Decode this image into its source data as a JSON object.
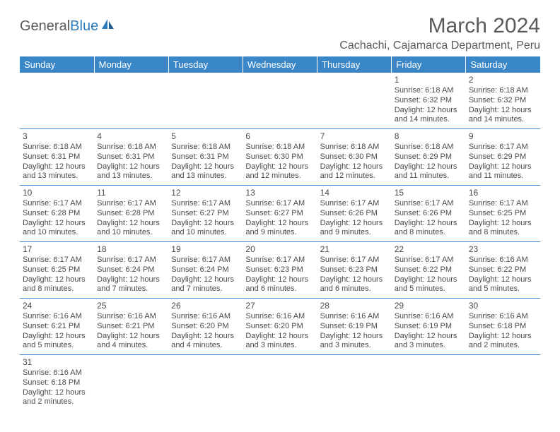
{
  "brand": {
    "part1": "General",
    "part2": "Blue"
  },
  "title": "March 2024",
  "location": "Cachachi, Cajamarca Department, Peru",
  "colors": {
    "header_bg": "#3a87c8",
    "header_fg": "#ffffff",
    "text": "#4a4a4a",
    "rule": "#3a87c8"
  },
  "day_headers": [
    "Sunday",
    "Monday",
    "Tuesday",
    "Wednesday",
    "Thursday",
    "Friday",
    "Saturday"
  ],
  "weeks": [
    [
      null,
      null,
      null,
      null,
      null,
      {
        "n": "1",
        "sr": "Sunrise: 6:18 AM",
        "ss": "Sunset: 6:32 PM",
        "dl": "Daylight: 12 hours and 14 minutes."
      },
      {
        "n": "2",
        "sr": "Sunrise: 6:18 AM",
        "ss": "Sunset: 6:32 PM",
        "dl": "Daylight: 12 hours and 14 minutes."
      }
    ],
    [
      {
        "n": "3",
        "sr": "Sunrise: 6:18 AM",
        "ss": "Sunset: 6:31 PM",
        "dl": "Daylight: 12 hours and 13 minutes."
      },
      {
        "n": "4",
        "sr": "Sunrise: 6:18 AM",
        "ss": "Sunset: 6:31 PM",
        "dl": "Daylight: 12 hours and 13 minutes."
      },
      {
        "n": "5",
        "sr": "Sunrise: 6:18 AM",
        "ss": "Sunset: 6:31 PM",
        "dl": "Daylight: 12 hours and 13 minutes."
      },
      {
        "n": "6",
        "sr": "Sunrise: 6:18 AM",
        "ss": "Sunset: 6:30 PM",
        "dl": "Daylight: 12 hours and 12 minutes."
      },
      {
        "n": "7",
        "sr": "Sunrise: 6:18 AM",
        "ss": "Sunset: 6:30 PM",
        "dl": "Daylight: 12 hours and 12 minutes."
      },
      {
        "n": "8",
        "sr": "Sunrise: 6:18 AM",
        "ss": "Sunset: 6:29 PM",
        "dl": "Daylight: 12 hours and 11 minutes."
      },
      {
        "n": "9",
        "sr": "Sunrise: 6:17 AM",
        "ss": "Sunset: 6:29 PM",
        "dl": "Daylight: 12 hours and 11 minutes."
      }
    ],
    [
      {
        "n": "10",
        "sr": "Sunrise: 6:17 AM",
        "ss": "Sunset: 6:28 PM",
        "dl": "Daylight: 12 hours and 10 minutes."
      },
      {
        "n": "11",
        "sr": "Sunrise: 6:17 AM",
        "ss": "Sunset: 6:28 PM",
        "dl": "Daylight: 12 hours and 10 minutes."
      },
      {
        "n": "12",
        "sr": "Sunrise: 6:17 AM",
        "ss": "Sunset: 6:27 PM",
        "dl": "Daylight: 12 hours and 10 minutes."
      },
      {
        "n": "13",
        "sr": "Sunrise: 6:17 AM",
        "ss": "Sunset: 6:27 PM",
        "dl": "Daylight: 12 hours and 9 minutes."
      },
      {
        "n": "14",
        "sr": "Sunrise: 6:17 AM",
        "ss": "Sunset: 6:26 PM",
        "dl": "Daylight: 12 hours and 9 minutes."
      },
      {
        "n": "15",
        "sr": "Sunrise: 6:17 AM",
        "ss": "Sunset: 6:26 PM",
        "dl": "Daylight: 12 hours and 8 minutes."
      },
      {
        "n": "16",
        "sr": "Sunrise: 6:17 AM",
        "ss": "Sunset: 6:25 PM",
        "dl": "Daylight: 12 hours and 8 minutes."
      }
    ],
    [
      {
        "n": "17",
        "sr": "Sunrise: 6:17 AM",
        "ss": "Sunset: 6:25 PM",
        "dl": "Daylight: 12 hours and 8 minutes."
      },
      {
        "n": "18",
        "sr": "Sunrise: 6:17 AM",
        "ss": "Sunset: 6:24 PM",
        "dl": "Daylight: 12 hours and 7 minutes."
      },
      {
        "n": "19",
        "sr": "Sunrise: 6:17 AM",
        "ss": "Sunset: 6:24 PM",
        "dl": "Daylight: 12 hours and 7 minutes."
      },
      {
        "n": "20",
        "sr": "Sunrise: 6:17 AM",
        "ss": "Sunset: 6:23 PM",
        "dl": "Daylight: 12 hours and 6 minutes."
      },
      {
        "n": "21",
        "sr": "Sunrise: 6:17 AM",
        "ss": "Sunset: 6:23 PM",
        "dl": "Daylight: 12 hours and 6 minutes."
      },
      {
        "n": "22",
        "sr": "Sunrise: 6:17 AM",
        "ss": "Sunset: 6:22 PM",
        "dl": "Daylight: 12 hours and 5 minutes."
      },
      {
        "n": "23",
        "sr": "Sunrise: 6:16 AM",
        "ss": "Sunset: 6:22 PM",
        "dl": "Daylight: 12 hours and 5 minutes."
      }
    ],
    [
      {
        "n": "24",
        "sr": "Sunrise: 6:16 AM",
        "ss": "Sunset: 6:21 PM",
        "dl": "Daylight: 12 hours and 5 minutes."
      },
      {
        "n": "25",
        "sr": "Sunrise: 6:16 AM",
        "ss": "Sunset: 6:21 PM",
        "dl": "Daylight: 12 hours and 4 minutes."
      },
      {
        "n": "26",
        "sr": "Sunrise: 6:16 AM",
        "ss": "Sunset: 6:20 PM",
        "dl": "Daylight: 12 hours and 4 minutes."
      },
      {
        "n": "27",
        "sr": "Sunrise: 6:16 AM",
        "ss": "Sunset: 6:20 PM",
        "dl": "Daylight: 12 hours and 3 minutes."
      },
      {
        "n": "28",
        "sr": "Sunrise: 6:16 AM",
        "ss": "Sunset: 6:19 PM",
        "dl": "Daylight: 12 hours and 3 minutes."
      },
      {
        "n": "29",
        "sr": "Sunrise: 6:16 AM",
        "ss": "Sunset: 6:19 PM",
        "dl": "Daylight: 12 hours and 3 minutes."
      },
      {
        "n": "30",
        "sr": "Sunrise: 6:16 AM",
        "ss": "Sunset: 6:18 PM",
        "dl": "Daylight: 12 hours and 2 minutes."
      }
    ],
    [
      {
        "n": "31",
        "sr": "Sunrise: 6:16 AM",
        "ss": "Sunset: 6:18 PM",
        "dl": "Daylight: 12 hours and 2 minutes."
      },
      null,
      null,
      null,
      null,
      null,
      null
    ]
  ]
}
